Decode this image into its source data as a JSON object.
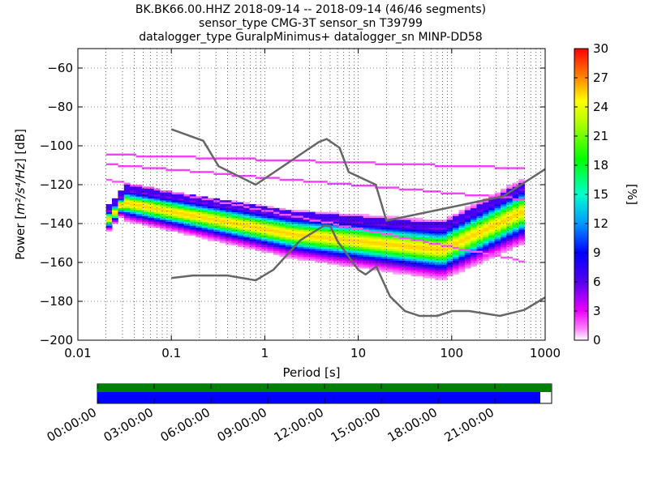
{
  "title": {
    "line1": "BK.BK66.00.HHZ   2018-09-14 -- 2018-09-14  (46/46 segments)",
    "line2": "sensor_type CMG-3T sensor_sn T39799",
    "line3": "datalogger_type GuralpMinimus+ datalogger_sn MINP-DD58"
  },
  "chart_data": {
    "type": "heatmap",
    "xlabel_prefix": "Period [s]",
    "ylabel_prefix": "Power [",
    "ylabel_math": "m²/s⁴/Hz",
    "ylabel_suffix": "] [dB]",
    "x_scale": "log",
    "xlim": [
      0.01,
      1000
    ],
    "ylim": [
      -200,
      -50
    ],
    "x_ticks": [
      0.01,
      0.1,
      1,
      10,
      100,
      1000
    ],
    "x_tick_labels": [
      "0.01",
      "0.1",
      "1",
      "10",
      "100",
      "1000"
    ],
    "y_ticks": [
      -200,
      -180,
      -160,
      -140,
      -120,
      -100,
      -80,
      -60
    ],
    "y_tick_labels": [
      "−200",
      "−180",
      "−160",
      "−140",
      "−120",
      "−100",
      "−80",
      "−60"
    ],
    "grid": true,
    "colorbar": {
      "label": "[%]",
      "range": [
        0,
        30
      ],
      "ticks": [
        0,
        3,
        6,
        9,
        12,
        15,
        18,
        21,
        24,
        27,
        30
      ],
      "tick_labels": [
        "0",
        "3",
        "6",
        "9",
        "12",
        "15",
        "18",
        "21",
        "24",
        "27",
        "30"
      ],
      "colormap": "pqlx"
    },
    "noise_models": {
      "nhnm": {
        "x": [
          0.1,
          0.22,
          0.32,
          0.8,
          3.8,
          4.6,
          6.3,
          7.9,
          15.4,
          20,
          354.8,
          1000
        ],
        "y": [
          -91.5,
          -97.4,
          -110.5,
          -120,
          -98,
          -96.5,
          -101,
          -113.5,
          -120,
          -138.5,
          -126,
          -112
        ]
      },
      "nlnm": {
        "x": [
          0.1,
          0.17,
          0.4,
          0.8,
          1.24,
          2.4,
          4.3,
          5,
          6,
          10,
          12,
          15.6,
          21.9,
          31.6,
          45,
          70,
          101,
          154,
          328,
          600,
          1000
        ],
        "y": [
          -168,
          -166.7,
          -166.7,
          -169.2,
          -163.7,
          -148.6,
          -141.1,
          -141.1,
          -149,
          -163.8,
          -166.2,
          -162.1,
          -177.5,
          -185,
          -187.5,
          -187.5,
          -185,
          -185,
          -187.5,
          -184.4,
          -178
        ]
      }
    },
    "timeline": {
      "labels": [
        "00:00:00",
        "03:00:00",
        "06:00:00",
        "09:00:00",
        "12:00:00",
        "15:00:00",
        "18:00:00",
        "21:00:00"
      ],
      "hours": [
        0,
        3,
        6,
        9,
        12,
        15,
        18,
        21
      ],
      "range_hours": [
        0,
        24
      ],
      "data_coverage_hours": [
        0,
        24
      ],
      "psd_coverage_hours": [
        0,
        23.4
      ],
      "colors": {
        "data": "#008000",
        "psd": "#0000ff"
      }
    }
  }
}
